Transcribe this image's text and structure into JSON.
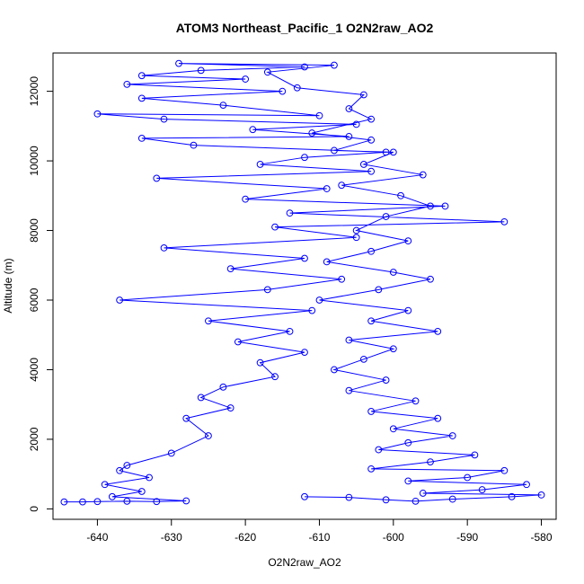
{
  "chart_data": {
    "type": "line",
    "title": "ATOM3 Northeast_Pacific_1 O2N2raw_AO2",
    "xlabel": "O2N2raw_AO2",
    "ylabel": "Altitude (m)",
    "xlim": [
      -646,
      -578
    ],
    "ylim": [
      -300,
      13100
    ],
    "xticks": [
      -640,
      -630,
      -620,
      -610,
      -600,
      -590,
      -580
    ],
    "yticks": [
      0,
      2000,
      4000,
      6000,
      8000,
      10000,
      12000
    ],
    "grid": false,
    "legend": "none",
    "marker": "open-circle",
    "color": "#0000ff",
    "series": [
      {
        "points": [
          [
            -644.5,
            200
          ],
          [
            -642,
            200
          ],
          [
            -640,
            210
          ],
          [
            -636,
            220
          ],
          [
            -632,
            210
          ],
          [
            -628,
            230
          ],
          [
            -638,
            350
          ],
          [
            -634,
            500
          ],
          [
            -639,
            700
          ],
          [
            -633,
            900
          ],
          [
            -637,
            1100
          ],
          [
            -636,
            1250
          ],
          [
            -630,
            1600
          ],
          [
            -625,
            2100
          ],
          [
            -628,
            2600
          ],
          [
            -622,
            2900
          ],
          [
            -626,
            3200
          ],
          [
            -623,
            3500
          ],
          [
            -616,
            3800
          ],
          [
            -618,
            4200
          ],
          [
            -612,
            4500
          ],
          [
            -621,
            4800
          ],
          [
            -614,
            5100
          ],
          [
            -625,
            5400
          ],
          [
            -611,
            5700
          ],
          [
            -637,
            6000
          ],
          [
            -617,
            6300
          ],
          [
            -607,
            6600
          ],
          [
            -622,
            6900
          ],
          [
            -612,
            7200
          ],
          [
            -631,
            7500
          ],
          [
            -605,
            7800
          ],
          [
            -616,
            8100
          ],
          [
            -585,
            8250
          ],
          [
            -614,
            8500
          ],
          [
            -593,
            8700
          ],
          [
            -620,
            8900
          ],
          [
            -609,
            9200
          ],
          [
            -632,
            9500
          ],
          [
            -603,
            9700
          ],
          [
            -618,
            9900
          ],
          [
            -612,
            10100
          ],
          [
            -601,
            10250
          ],
          [
            -627,
            10450
          ],
          [
            -634,
            10650
          ],
          [
            -606,
            10700
          ],
          [
            -619,
            10900
          ],
          [
            -605,
            11050
          ],
          [
            -631,
            11200
          ],
          [
            -640,
            11350
          ],
          [
            -610,
            11300
          ],
          [
            -623,
            11600
          ],
          [
            -634,
            11800
          ],
          [
            -615,
            12000
          ],
          [
            -636,
            12200
          ],
          [
            -620,
            12350
          ],
          [
            -634,
            12450
          ],
          [
            -626,
            12600
          ],
          [
            -612,
            12700
          ],
          [
            -629,
            12800
          ],
          [
            -608,
            12750
          ],
          [
            -617,
            12550
          ],
          [
            -613,
            12100
          ],
          [
            -604,
            11900
          ],
          [
            -606,
            11500
          ],
          [
            -603,
            11200
          ],
          [
            -611,
            10800
          ],
          [
            -603,
            10600
          ],
          [
            -608,
            10300
          ],
          [
            -600,
            10250
          ],
          [
            -604,
            9900
          ],
          [
            -596,
            9600
          ],
          [
            -607,
            9300
          ],
          [
            -599,
            9000
          ],
          [
            -595,
            8700
          ],
          [
            -601,
            8400
          ],
          [
            -605,
            8000
          ],
          [
            -598,
            7700
          ],
          [
            -603,
            7400
          ],
          [
            -609,
            7100
          ],
          [
            -600,
            6800
          ],
          [
            -595,
            6600
          ],
          [
            -602,
            6300
          ],
          [
            -610,
            6000
          ],
          [
            -598,
            5700
          ],
          [
            -603,
            5400
          ],
          [
            -594,
            5100
          ],
          [
            -606,
            4850
          ],
          [
            -600,
            4600
          ],
          [
            -604,
            4300
          ],
          [
            -608,
            4000
          ],
          [
            -601,
            3700
          ],
          [
            -606,
            3400
          ],
          [
            -597,
            3100
          ],
          [
            -603,
            2800
          ],
          [
            -594,
            2600
          ],
          [
            -600,
            2300
          ],
          [
            -592,
            2100
          ],
          [
            -598,
            1900
          ],
          [
            -602,
            1700
          ],
          [
            -589,
            1550
          ],
          [
            -595,
            1350
          ],
          [
            -603,
            1150
          ],
          [
            -585,
            1100
          ],
          [
            -590,
            900
          ],
          [
            -598,
            800
          ],
          [
            -582,
            700
          ],
          [
            -588,
            550
          ],
          [
            -596,
            450
          ],
          [
            -580,
            400
          ],
          [
            -584,
            350
          ],
          [
            -592,
            280
          ],
          [
            -597,
            220
          ],
          [
            -601,
            260
          ],
          [
            -606,
            330
          ],
          [
            -612,
            350
          ]
        ]
      }
    ]
  }
}
